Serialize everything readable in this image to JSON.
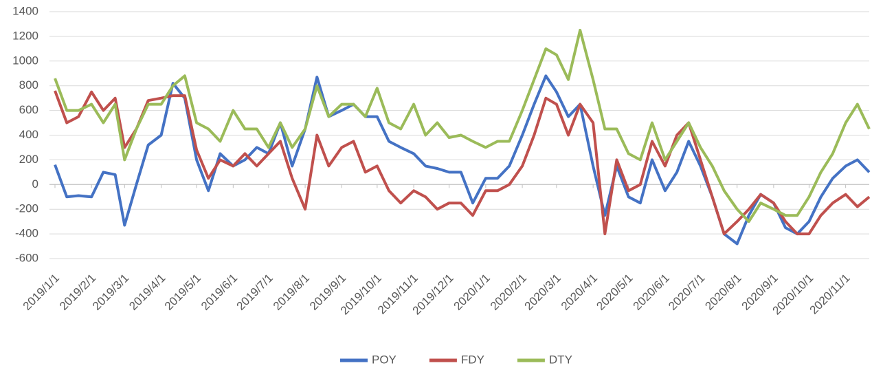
{
  "chart_data": {
    "type": "line",
    "x": [
      "2019/1/1",
      "2019/1/11",
      "2019/1/21",
      "2019/2/1",
      "2019/2/11",
      "2019/2/21",
      "2019/3/1",
      "2019/3/11",
      "2019/3/21",
      "2019/4/1",
      "2019/4/11",
      "2019/4/21",
      "2019/5/1",
      "2019/5/11",
      "2019/5/21",
      "2019/6/1",
      "2019/6/11",
      "2019/6/21",
      "2019/7/1",
      "2019/7/11",
      "2019/7/21",
      "2019/8/1",
      "2019/8/11",
      "2019/8/21",
      "2019/9/1",
      "2019/9/11",
      "2019/9/21",
      "2019/10/1",
      "2019/10/11",
      "2019/10/21",
      "2019/11/1",
      "2019/11/11",
      "2019/11/21",
      "2019/12/1",
      "2019/12/11",
      "2019/12/21",
      "2020/1/1",
      "2020/1/11",
      "2020/1/21",
      "2020/2/1",
      "2020/2/11",
      "2020/2/21",
      "2020/3/1",
      "2020/3/11",
      "2020/3/21",
      "2020/4/1",
      "2020/4/11",
      "2020/4/21",
      "2020/5/1",
      "2020/5/11",
      "2020/5/21",
      "2020/6/1",
      "2020/6/11",
      "2020/6/21",
      "2020/7/1",
      "2020/7/11",
      "2020/7/21",
      "2020/8/1",
      "2020/8/11",
      "2020/8/21",
      "2020/9/1",
      "2020/9/11",
      "2020/9/21",
      "2020/10/1",
      "2020/10/11",
      "2020/10/21",
      "2020/11/1",
      "2020/11/11",
      "2020/11/21"
    ],
    "series": [
      {
        "name": "POY",
        "color": "#4472c4",
        "values": [
          160,
          -100,
          -90,
          -100,
          100,
          80,
          -330,
          0,
          320,
          400,
          820,
          700,
          200,
          -50,
          250,
          150,
          200,
          300,
          250,
          500,
          150,
          450,
          870,
          550,
          600,
          650,
          550,
          550,
          350,
          300,
          250,
          150,
          130,
          100,
          100,
          -150,
          50,
          50,
          150,
          400,
          650,
          880,
          750,
          550,
          650,
          150,
          -250,
          150,
          -100,
          -150,
          200,
          -50,
          100,
          350,
          150,
          -100,
          -400,
          -480,
          -250,
          -80,
          -150,
          -350,
          -400,
          -300,
          -100,
          50,
          150,
          200,
          100
        ]
      },
      {
        "name": "FDY",
        "color": "#c0504d",
        "values": [
          760,
          500,
          550,
          750,
          600,
          700,
          300,
          450,
          680,
          700,
          720,
          720,
          280,
          50,
          200,
          150,
          250,
          150,
          250,
          350,
          50,
          -200,
          400,
          150,
          300,
          350,
          100,
          150,
          -50,
          -150,
          -50,
          -100,
          -200,
          -150,
          -150,
          -250,
          -50,
          -50,
          0,
          150,
          400,
          700,
          650,
          400,
          650,
          500,
          -400,
          200,
          -50,
          0,
          350,
          150,
          400,
          500,
          200,
          -100,
          -400,
          -300,
          -200,
          -80,
          -150,
          -300,
          -400,
          -400,
          -250,
          -150,
          -80,
          -180,
          -100
        ]
      },
      {
        "name": "DTY",
        "color": "#9bbb59",
        "values": [
          860,
          600,
          600,
          650,
          500,
          650,
          200,
          450,
          650,
          650,
          800,
          880,
          500,
          450,
          350,
          600,
          450,
          450,
          300,
          500,
          300,
          450,
          800,
          550,
          650,
          650,
          550,
          780,
          500,
          450,
          650,
          400,
          500,
          380,
          400,
          350,
          300,
          350,
          350,
          600,
          850,
          1100,
          1050,
          850,
          1250,
          850,
          450,
          450,
          250,
          200,
          500,
          200,
          350,
          500,
          300,
          150,
          -50,
          -200,
          -300,
          -150,
          -200,
          -250,
          -250,
          -100,
          100,
          250,
          500,
          650,
          450
        ]
      }
    ],
    "xlim": [
      "2019/1/1",
      "2020/11/21"
    ],
    "xticks": [
      "2019/1/1",
      "2019/2/1",
      "2019/3/1",
      "2019/4/1",
      "2019/5/1",
      "2019/6/1",
      "2019/7/1",
      "2019/8/1",
      "2019/9/1",
      "2019/10/1",
      "2019/11/1",
      "2019/12/1",
      "2020/1/1",
      "2020/2/1",
      "2020/3/1",
      "2020/4/1",
      "2020/5/1",
      "2020/6/1",
      "2020/7/1",
      "2020/8/1",
      "2020/9/1",
      "2020/10/1",
      "2020/11/1"
    ],
    "ylim": [
      -600,
      1400
    ],
    "yticks": [
      -600,
      -400,
      -200,
      0,
      200,
      400,
      600,
      800,
      1000,
      1200,
      1400
    ],
    "grid": true
  }
}
